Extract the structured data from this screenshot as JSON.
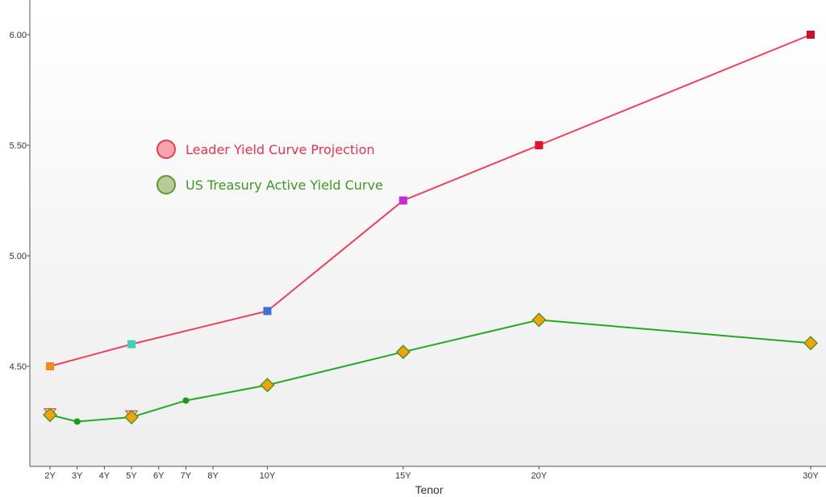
{
  "chart_data": {
    "type": "line",
    "xlabel": "Tenor",
    "ylabel": "",
    "x_ticks": [
      {
        "label": "2Y",
        "years": 2
      },
      {
        "label": "3Y",
        "years": 3
      },
      {
        "label": "4Y",
        "years": 4
      },
      {
        "label": "5Y",
        "years": 5
      },
      {
        "label": "6Y",
        "years": 6
      },
      {
        "label": "7Y",
        "years": 7
      },
      {
        "label": "8Y",
        "years": 8
      },
      {
        "label": "10Y",
        "years": 10
      },
      {
        "label": "15Y",
        "years": 15
      },
      {
        "label": "20Y",
        "years": 20
      },
      {
        "label": "30Y",
        "years": 30
      }
    ],
    "y_ticks": [
      "4.50",
      "5.00",
      "5.50",
      "6.00"
    ],
    "ylim": [
      4.08,
      6.15
    ],
    "xlim": [
      2,
      30
    ],
    "grid": false,
    "legend_position": "left-center",
    "series": [
      {
        "name": "Leader Yield Curve Projection",
        "color": "#f0405a",
        "legend_fill": "#f7a3ae",
        "points": [
          {
            "x": 2,
            "y": 4.5,
            "marker": "square",
            "color": "#f5891f"
          },
          {
            "x": 5,
            "y": 4.6,
            "marker": "square",
            "color": "#3fd0b8"
          },
          {
            "x": 10,
            "y": 4.75,
            "marker": "square",
            "color": "#3a6fd8"
          },
          {
            "x": 15,
            "y": 5.25,
            "marker": "square",
            "color": "#c52ad6"
          },
          {
            "x": 20,
            "y": 5.5,
            "marker": "square",
            "color": "#e8102a"
          },
          {
            "x": 30,
            "y": 6.0,
            "marker": "square",
            "color": "#c8102e"
          }
        ],
        "extra_markers": [
          {
            "x": 2,
            "y": 4.29,
            "marker": "triangle-down"
          },
          {
            "x": 5,
            "y": 4.28,
            "marker": "triangle-down"
          }
        ]
      },
      {
        "name": "US Treasury Active Yield Curve",
        "color": "#22aa22",
        "legend_fill": "#b8c99a",
        "points": [
          {
            "x": 2,
            "y": 4.28,
            "marker": "diamond"
          },
          {
            "x": 3,
            "y": 4.25,
            "marker": "dot"
          },
          {
            "x": 5,
            "y": 4.27,
            "marker": "diamond"
          },
          {
            "x": 7,
            "y": 4.345,
            "marker": "dot"
          },
          {
            "x": 10,
            "y": 4.415,
            "marker": "diamond"
          },
          {
            "x": 15,
            "y": 4.565,
            "marker": "diamond"
          },
          {
            "x": 20,
            "y": 4.71,
            "marker": "diamond"
          },
          {
            "x": 30,
            "y": 4.605,
            "marker": "diamond"
          }
        ]
      }
    ]
  }
}
